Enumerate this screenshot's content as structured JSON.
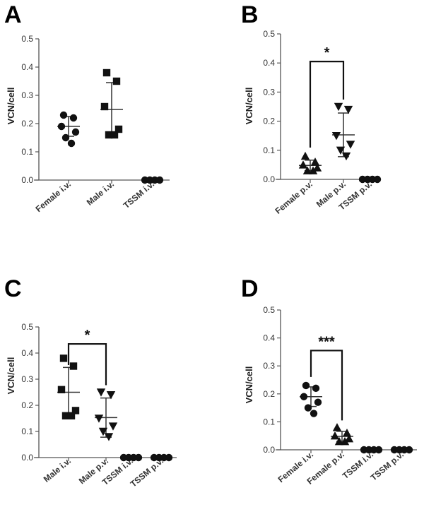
{
  "chart_data": [
    {
      "panel": "A",
      "type": "scatter",
      "ylabel": "VCN/cell",
      "ylim": [
        0,
        0.5
      ],
      "yticks": [
        "0.0",
        "0.1",
        "0.2",
        "0.3",
        "0.4",
        "0.5"
      ],
      "categories": [
        "Female i.v.",
        "Male i.v.",
        "TSSM i.v."
      ],
      "markers": [
        "circle",
        "square",
        "circle"
      ],
      "points": [
        [
          0.23,
          0.22,
          0.19,
          0.17,
          0.15,
          0.13
        ],
        [
          0.38,
          0.35,
          0.26,
          0.18,
          0.16,
          0.16
        ],
        [
          0.0,
          0.0,
          0.0,
          0.0
        ]
      ],
      "mean": [
        0.19,
        0.25,
        0.0
      ],
      "sd": [
        0.035,
        0.095,
        0.0
      ],
      "significance": []
    },
    {
      "panel": "B",
      "type": "scatter",
      "ylabel": "VCN/cell",
      "ylim": [
        0,
        0.5
      ],
      "yticks": [
        "0.0",
        "0.1",
        "0.2",
        "0.3",
        "0.4",
        "0.5"
      ],
      "categories": [
        "Female p.v.",
        "Male p.v.",
        "TSSM p.v."
      ],
      "markers": [
        "triangle-up",
        "triangle-down",
        "circle"
      ],
      "points": [
        [
          0.08,
          0.06,
          0.05,
          0.04,
          0.03,
          0.03
        ],
        [
          0.25,
          0.24,
          0.15,
          0.12,
          0.1,
          0.08
        ],
        [
          0.0,
          0.0,
          0.0,
          0.0
        ]
      ],
      "mean": [
        0.048,
        0.153,
        0.0
      ],
      "sd": [
        0.018,
        0.075,
        0.0
      ],
      "significance": [
        {
          "from": 0,
          "to": 1,
          "label": "*",
          "y": 0.405
        }
      ]
    },
    {
      "panel": "C",
      "type": "scatter",
      "ylabel": "VCN/cell",
      "ylim": [
        0,
        0.5
      ],
      "yticks": [
        "0.0",
        "0.1",
        "0.2",
        "0.3",
        "0.4",
        "0.5"
      ],
      "categories": [
        "Male i.v.",
        "Male p.v.",
        "TSSM i.v.",
        "TSSM p.v."
      ],
      "markers": [
        "square",
        "triangle-down",
        "circle",
        "circle"
      ],
      "points": [
        [
          0.38,
          0.35,
          0.26,
          0.18,
          0.16,
          0.16
        ],
        [
          0.25,
          0.24,
          0.15,
          0.12,
          0.1,
          0.08
        ],
        [
          0.0,
          0.0,
          0.0,
          0.0
        ],
        [
          0.0,
          0.0,
          0.0,
          0.0
        ]
      ],
      "mean": [
        0.25,
        0.153,
        0.0,
        0.0
      ],
      "sd": [
        0.095,
        0.075,
        0.0,
        0.0
      ],
      "significance": [
        {
          "from": 0,
          "to": 1,
          "label": "*",
          "y": 0.435
        }
      ]
    },
    {
      "panel": "D",
      "type": "scatter",
      "ylabel": "VCN/cell",
      "ylim": [
        0,
        0.5
      ],
      "yticks": [
        "0.0",
        "0.1",
        "0.2",
        "0.3",
        "0.4",
        "0.5"
      ],
      "categories": [
        "Female i.v.",
        "Female p.v.",
        "TSSM i.v.",
        "TSSM p.v."
      ],
      "markers": [
        "circle",
        "triangle-up",
        "circle",
        "circle"
      ],
      "points": [
        [
          0.23,
          0.22,
          0.19,
          0.17,
          0.15,
          0.13
        ],
        [
          0.08,
          0.06,
          0.05,
          0.04,
          0.03,
          0.03
        ],
        [
          0.0,
          0.0,
          0.0,
          0.0
        ],
        [
          0.0,
          0.0,
          0.0,
          0.0
        ]
      ],
      "mean": [
        0.19,
        0.048,
        0.0,
        0.0
      ],
      "sd": [
        0.035,
        0.018,
        0.0,
        0.0
      ],
      "significance": [
        {
          "from": 0,
          "to": 1,
          "label": "***",
          "y": 0.355
        }
      ]
    }
  ]
}
